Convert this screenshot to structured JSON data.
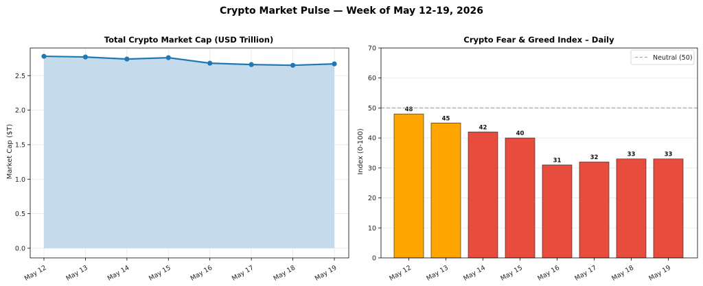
{
  "figure": {
    "title": "Crypto Market Pulse — Week of May 12-19, 2026"
  },
  "chart_data": [
    {
      "type": "area",
      "title": "Total Crypto Market Cap (USD Trillion)",
      "xlabel": "",
      "ylabel": "Market Cap ($T)",
      "categories": [
        "May 12",
        "May 13",
        "May 14",
        "May 15",
        "May 16",
        "May 17",
        "May 18",
        "May 19"
      ],
      "values": [
        2.78,
        2.77,
        2.74,
        2.76,
        2.68,
        2.66,
        2.65,
        2.67
      ],
      "ylim": [
        -0.14,
        2.9
      ],
      "yticks": [
        "0.0",
        "0.5",
        "1.0",
        "1.5",
        "2.0",
        "2.5"
      ],
      "ytick_values": [
        0,
        0.5,
        1.0,
        1.5,
        2.0,
        2.5
      ],
      "grid": true,
      "colors": {
        "line": "#1f77b4",
        "fill": "#c5dbec"
      }
    },
    {
      "type": "bar",
      "title": "Crypto Fear & Greed Index – Daily",
      "xlabel": "",
      "ylabel": "Index (0-100)",
      "categories": [
        "May 12",
        "May 13",
        "May 14",
        "May 15",
        "May 16",
        "May 17",
        "May 18",
        "May 19"
      ],
      "values": [
        48,
        45,
        42,
        40,
        31,
        32,
        33,
        33
      ],
      "data_labels": [
        "48",
        "45",
        "42",
        "40",
        "31",
        "32",
        "33",
        "33"
      ],
      "ylim": [
        0,
        70
      ],
      "yticks": [
        "0",
        "10",
        "20",
        "30",
        "40",
        "50",
        "60",
        "70"
      ],
      "ytick_values": [
        0,
        10,
        20,
        30,
        40,
        50,
        60,
        70
      ],
      "grid": true,
      "bar_colors": [
        "#ffa500",
        "#ffa500",
        "#e84c3d",
        "#e84c3d",
        "#e84c3d",
        "#e84c3d",
        "#e84c3d",
        "#e84c3d"
      ],
      "reference_line": {
        "value": 50,
        "label": "Neutral (50)",
        "color": "#aaaaaa"
      },
      "legend": {
        "placement": "top-right",
        "entries": [
          "Neutral (50)"
        ]
      }
    }
  ]
}
